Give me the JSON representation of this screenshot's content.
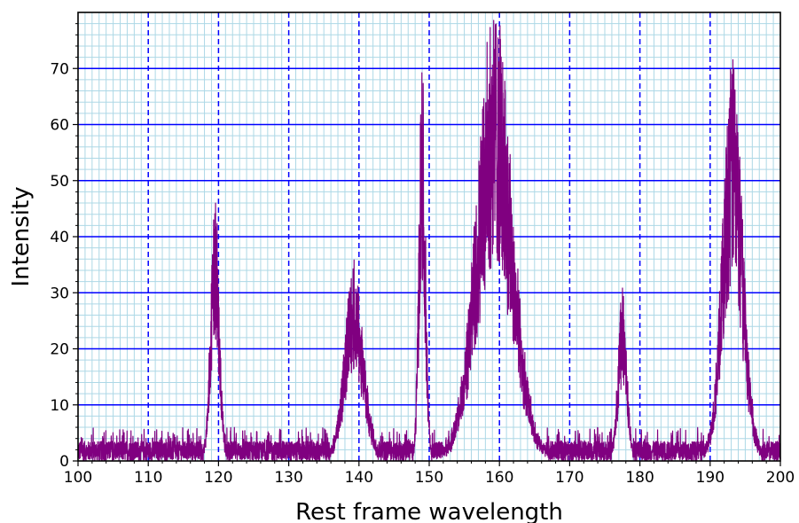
{
  "chart_data": {
    "type": "line",
    "title": "",
    "xlabel": "Rest frame wavelength",
    "ylabel": "Intensity",
    "xlim": [
      100,
      200
    ],
    "ylim": [
      0,
      80
    ],
    "x_ticks": [
      100,
      110,
      120,
      130,
      140,
      150,
      160,
      170,
      180,
      190,
      200
    ],
    "y_ticks": [
      0,
      10,
      20,
      30,
      40,
      50,
      60,
      70
    ],
    "major_grid": true,
    "minor_grid": true,
    "legend": "none",
    "colors": {
      "series": "#800080",
      "major_grid": "#0000ff",
      "minor_grid": "#add8e6",
      "axes": "#000000"
    },
    "series": [
      {
        "color": "#800080",
        "baseline_noise": [
          0,
          5
        ],
        "peaks": [
          {
            "center": 119.5,
            "height": 45,
            "width": 0.6
          },
          {
            "center": 139.3,
            "height": 33,
            "width": 1.3
          },
          {
            "center": 149.0,
            "height": 68,
            "width": 0.45
          },
          {
            "center": 159.3,
            "height": 76,
            "width": 2.5
          },
          {
            "center": 177.5,
            "height": 29,
            "width": 0.6
          },
          {
            "center": 193.2,
            "height": 68,
            "width": 1.4
          }
        ]
      }
    ]
  }
}
